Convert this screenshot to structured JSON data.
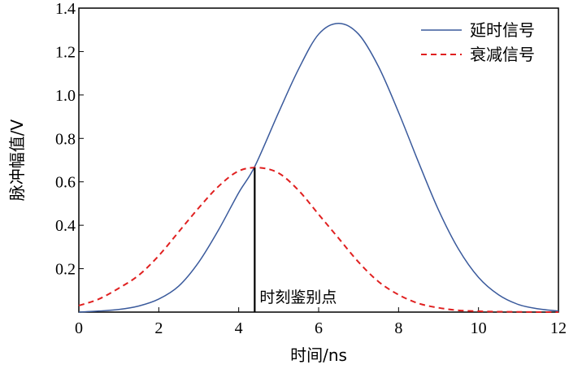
{
  "chart_data": {
    "type": "line",
    "xlabel": "时间/ns",
    "ylabel": "脉冲幅值/V",
    "xlim": [
      0,
      12
    ],
    "ylim": [
      0,
      1.4
    ],
    "xticks": [
      "0",
      "2",
      "4",
      "6",
      "8",
      "10",
      "12"
    ],
    "yticks": [
      "0.2",
      "0.4",
      "0.6",
      "0.8",
      "1.0",
      "1.2",
      "1.4"
    ],
    "grid": false,
    "legend_position": "top-right",
    "series": [
      {
        "name": "延时信号",
        "color": "#3a5a9c",
        "style": "solid",
        "x": [
          0,
          0.5,
          1,
          1.5,
          2,
          2.5,
          3,
          3.5,
          4,
          4.4,
          5,
          5.5,
          6,
          6.5,
          7,
          7.5,
          8,
          8.5,
          9,
          9.5,
          10,
          10.5,
          11,
          11.5,
          12
        ],
        "y": [
          0.0,
          0.005,
          0.012,
          0.028,
          0.06,
          0.12,
          0.23,
          0.38,
          0.55,
          0.67,
          0.92,
          1.12,
          1.28,
          1.33,
          1.28,
          1.13,
          0.92,
          0.69,
          0.47,
          0.29,
          0.16,
          0.08,
          0.035,
          0.015,
          0.005
        ]
      },
      {
        "name": "衰减信号",
        "color": "#e02020",
        "style": "dashed",
        "x": [
          0,
          0.5,
          1,
          1.5,
          2,
          2.5,
          3,
          3.5,
          4,
          4.5,
          5,
          5.5,
          6,
          6.5,
          7,
          7.5,
          8,
          8.5,
          9,
          9.5,
          10,
          10.5,
          11,
          11.5,
          12
        ],
        "y": [
          0.03,
          0.06,
          0.11,
          0.17,
          0.26,
          0.37,
          0.48,
          0.58,
          0.65,
          0.665,
          0.64,
          0.56,
          0.45,
          0.34,
          0.23,
          0.14,
          0.08,
          0.04,
          0.02,
          0.008,
          0.004,
          0.002,
          0.001,
          0.0,
          0.0
        ]
      }
    ],
    "annotations": [
      {
        "text": "时刻鉴别点",
        "x": 4.4,
        "y": 0.665
      }
    ]
  }
}
